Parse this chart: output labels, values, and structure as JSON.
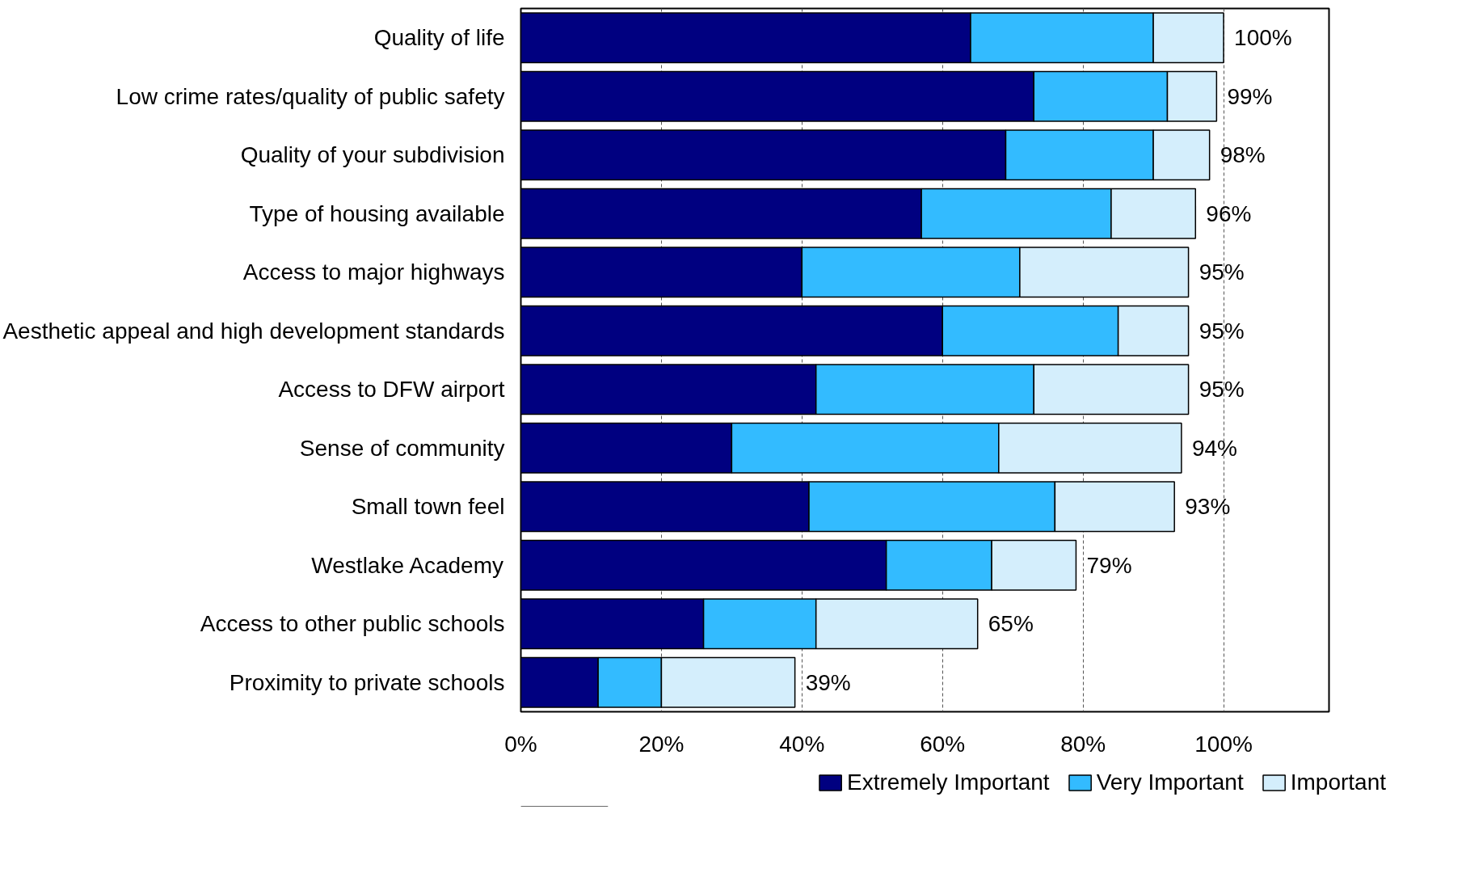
{
  "chart_data": {
    "type": "bar",
    "orientation": "horizontal",
    "stacked": true,
    "categories": [
      "Quality of life",
      "Low crime rates/quality of public safety",
      "Quality of your subdivision",
      "Type of housing available",
      "Access to major highways",
      "Aesthetic appeal and high development standards",
      "Access to DFW airport",
      "Sense of community",
      "Small town feel",
      "Westlake Academy",
      "Access to other public schools",
      "Proximity to private schools"
    ],
    "series": [
      {
        "name": "Extremely Important",
        "color": "#000080",
        "values": [
          64,
          73,
          69,
          57,
          40,
          60,
          42,
          30,
          41,
          52,
          26,
          11
        ]
      },
      {
        "name": "Very Important",
        "color": "#33bbff",
        "values": [
          26,
          19,
          21,
          27,
          31,
          25,
          31,
          38,
          35,
          15,
          16,
          9
        ]
      },
      {
        "name": "Important",
        "color": "#d4eefc",
        "values": [
          10,
          7,
          8,
          12,
          24,
          10,
          22,
          26,
          17,
          12,
          23,
          19
        ]
      }
    ],
    "totals": [
      "100%",
      "99%",
      "98%",
      "96%",
      "95%",
      "95%",
      "95%",
      "94%",
      "93%",
      "79%",
      "65%",
      "39%"
    ],
    "xlim": [
      0,
      115
    ],
    "xticks": [
      {
        "value": 0,
        "label": "0%"
      },
      {
        "value": 20,
        "label": "20%"
      },
      {
        "value": 40,
        "label": "40%"
      },
      {
        "value": 60,
        "label": "60%"
      },
      {
        "value": 80,
        "label": "80%"
      },
      {
        "value": 100,
        "label": "100%"
      }
    ],
    "grid": "x",
    "legend": "bottom right"
  }
}
